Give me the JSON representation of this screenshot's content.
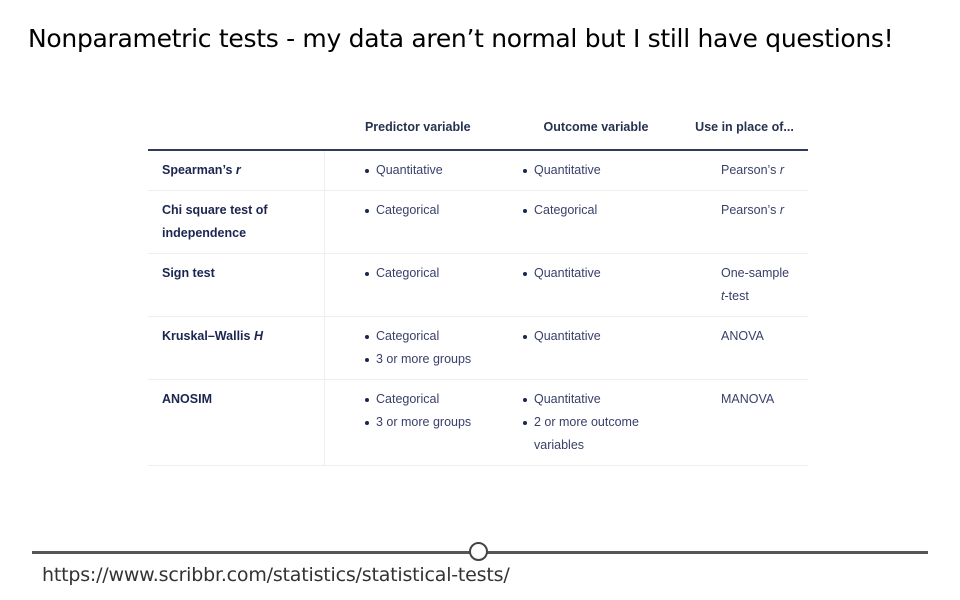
{
  "slide": {
    "title": "Nonparametric tests - my data aren’t normal but I still have questions!",
    "source_url": "https://www.scribbr.com/statistics/statistical-tests/"
  },
  "table": {
    "headers": {
      "test": "",
      "predictor": "Predictor variable",
      "outcome": "Outcome variable",
      "use_in_place": "Use in place of..."
    },
    "rows": [
      {
        "test_name": "Spearman’s",
        "test_suffix_italic": "r",
        "predictor": [
          "Quantitative"
        ],
        "outcome": [
          "Quantitative"
        ],
        "use_in_place": "Pearson’s",
        "use_suffix_italic": "r",
        "use_tail": ""
      },
      {
        "test_name": "Chi square test of independence",
        "test_suffix_italic": "",
        "predictor": [
          "Categorical"
        ],
        "outcome": [
          "Categorical"
        ],
        "use_in_place": "Pearson’s",
        "use_suffix_italic": "r",
        "use_tail": ""
      },
      {
        "test_name": "Sign test",
        "test_suffix_italic": "",
        "predictor": [
          "Categorical"
        ],
        "outcome": [
          "Quantitative"
        ],
        "use_in_place": "One-sample",
        "use_suffix_italic": "t",
        "use_tail": "-test"
      },
      {
        "test_name": "Kruskal–Wallis",
        "test_suffix_italic": "H",
        "predictor": [
          "Categorical",
          "3 or more groups"
        ],
        "outcome": [
          "Quantitative"
        ],
        "use_in_place": "ANOVA",
        "use_suffix_italic": "",
        "use_tail": ""
      },
      {
        "test_name": "ANOSIM",
        "test_suffix_italic": "",
        "predictor": [
          "Categorical",
          "3 or more groups"
        ],
        "outcome": [
          "Quantitative",
          "2 or more outcome variables"
        ],
        "use_in_place": "MANOVA",
        "use_suffix_italic": "",
        "use_tail": ""
      }
    ]
  }
}
